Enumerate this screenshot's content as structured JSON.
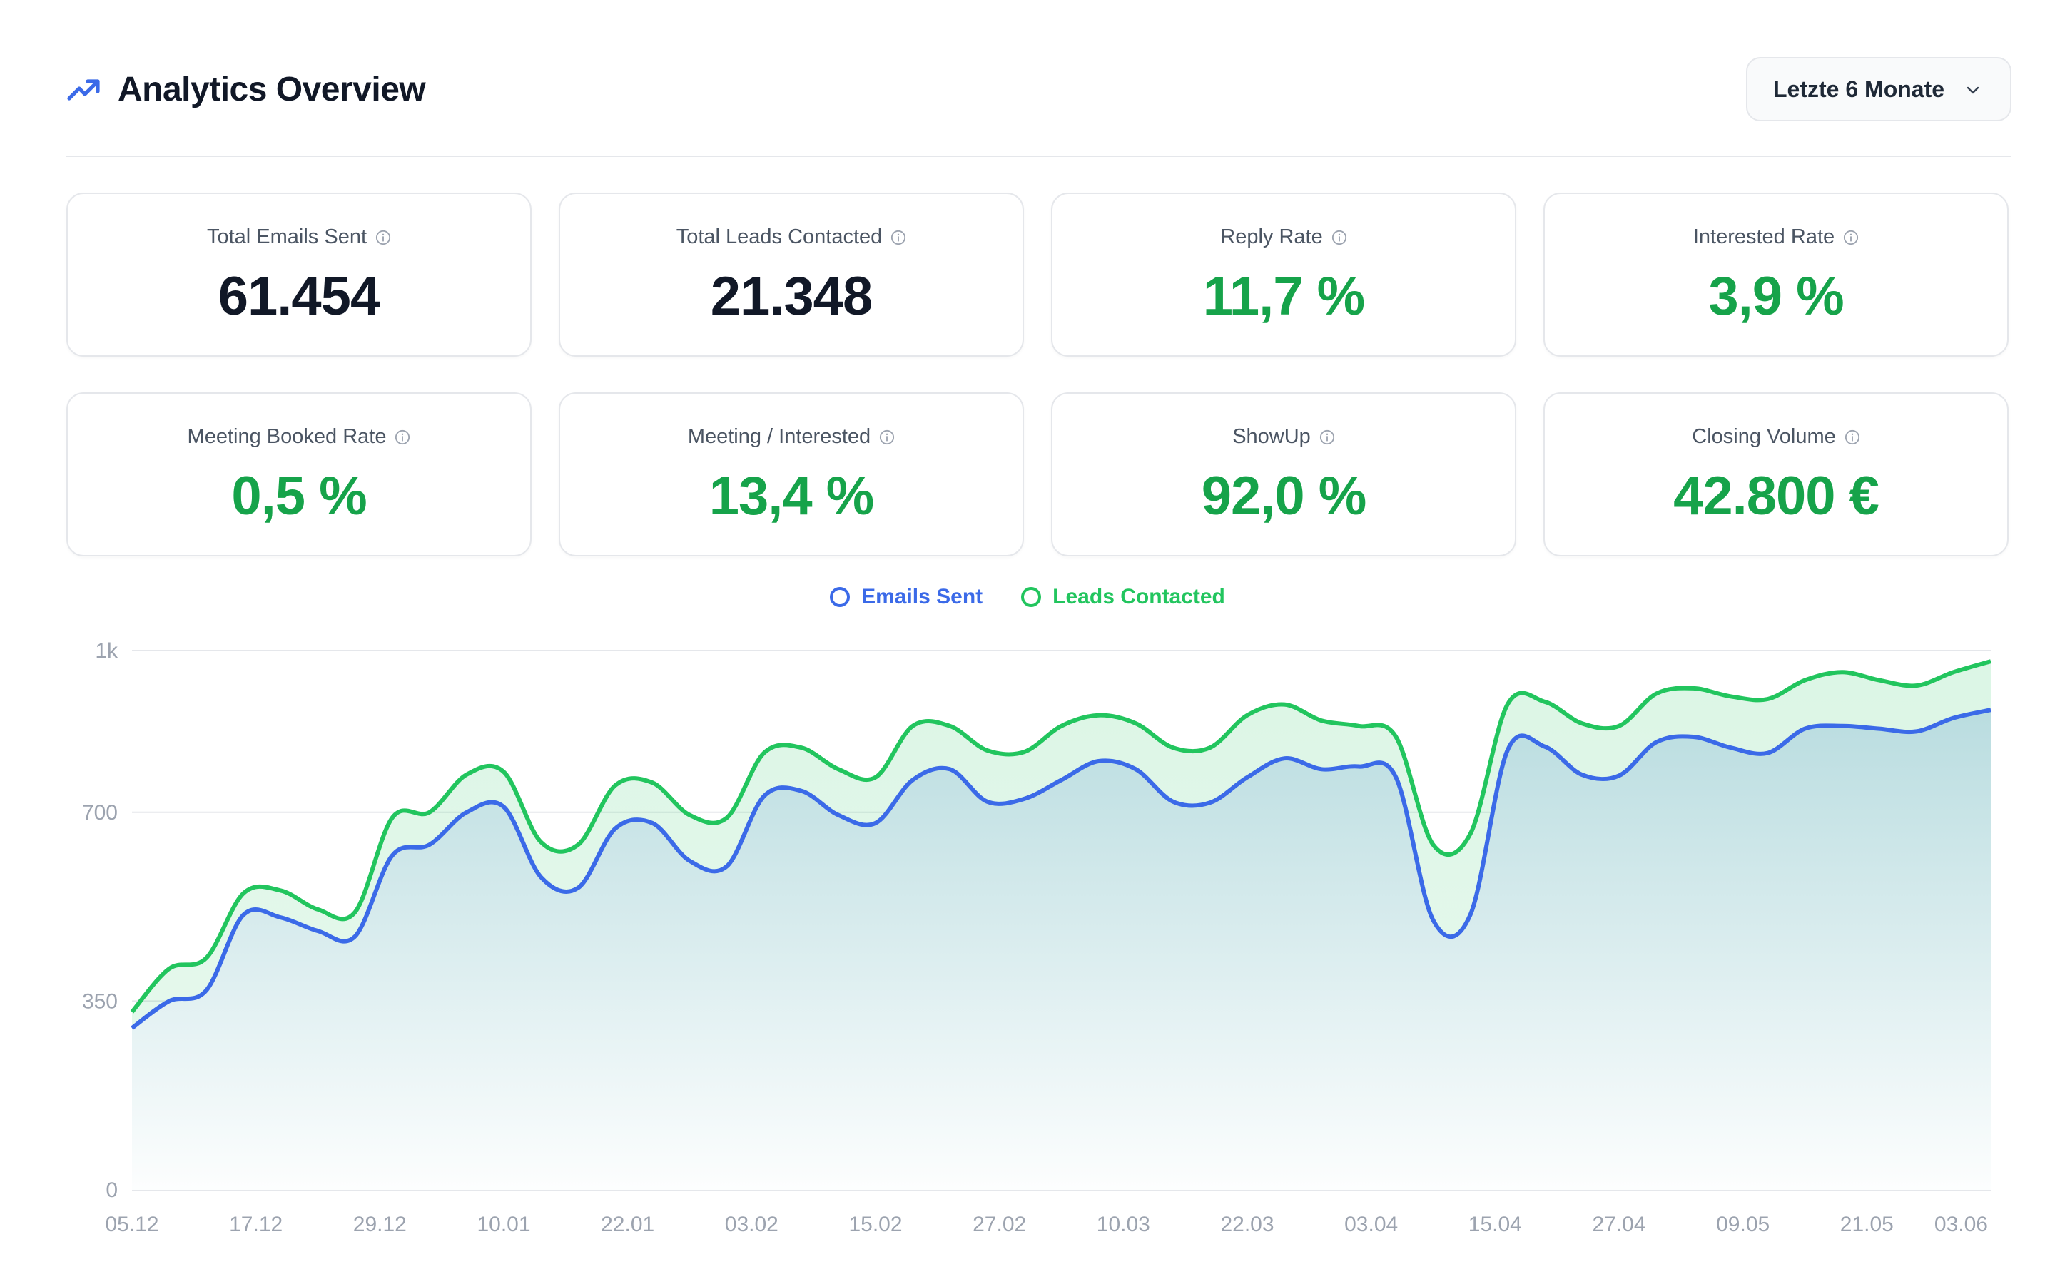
{
  "header": {
    "title": "Analytics Overview",
    "range_label": "Letzte 6 Monate"
  },
  "kpis": [
    {
      "label": "Total Emails Sent",
      "value": "61.454",
      "tone": "dark"
    },
    {
      "label": "Total Leads Contacted",
      "value": "21.348",
      "tone": "dark"
    },
    {
      "label": "Reply Rate",
      "value": "11,7 %",
      "tone": "green"
    },
    {
      "label": "Interested Rate",
      "value": "3,9 %",
      "tone": "green"
    },
    {
      "label": "Meeting Booked Rate",
      "value": "0,5 %",
      "tone": "green"
    },
    {
      "label": "Meeting / Interested",
      "value": "13,4 %",
      "tone": "green"
    },
    {
      "label": "ShowUp",
      "value": "92,0 %",
      "tone": "green"
    },
    {
      "label": "Closing Volume",
      "value": "42.800 €",
      "tone": "green"
    }
  ],
  "colors": {
    "emails": "#3b6ae8",
    "leads": "#22c55e",
    "accent": "#3b6ae8",
    "green_text": "#16a34a"
  },
  "icons": {
    "title": "trending-up-icon",
    "dropdown": "chevron-down-icon",
    "info": "info-icon"
  },
  "chart_data": {
    "type": "area",
    "legend_position": "top-center",
    "grid": true,
    "ylim": [
      0,
      1000
    ],
    "y_ticks": [
      {
        "value": 0,
        "label": "0"
      },
      {
        "value": 350,
        "label": "350"
      },
      {
        "value": 700,
        "label": "700"
      },
      {
        "value": 1000,
        "label": "1k"
      }
    ],
    "x_tick_labels": [
      "05.12",
      "17.12",
      "29.12",
      "10.01",
      "22.01",
      "03.02",
      "15.02",
      "27.02",
      "10.03",
      "22.03",
      "03.04",
      "15.04",
      "27.04",
      "09.05",
      "21.05",
      "03.06"
    ],
    "series": [
      {
        "name": "Emails Sent",
        "values": [
          300,
          350,
          370,
          510,
          505,
          480,
          470,
          620,
          640,
          700,
          710,
          580,
          560,
          670,
          680,
          610,
          600,
          730,
          740,
          695,
          680,
          760,
          780,
          720,
          725,
          760,
          795,
          780,
          720,
          718,
          765,
          800,
          780,
          785,
          765,
          500,
          510,
          815,
          822,
          770,
          768,
          830,
          840,
          820,
          810,
          855,
          860,
          855,
          850,
          875,
          890
        ]
      },
      {
        "name": "Leads Contacted",
        "values": [
          330,
          410,
          430,
          550,
          555,
          520,
          515,
          690,
          700,
          770,
          775,
          645,
          640,
          750,
          755,
          695,
          690,
          810,
          820,
          780,
          765,
          860,
          860,
          815,
          812,
          860,
          880,
          865,
          820,
          820,
          880,
          900,
          870,
          860,
          840,
          640,
          660,
          900,
          905,
          865,
          860,
          920,
          930,
          915,
          910,
          945,
          960,
          945,
          935,
          960,
          980
        ]
      }
    ]
  }
}
